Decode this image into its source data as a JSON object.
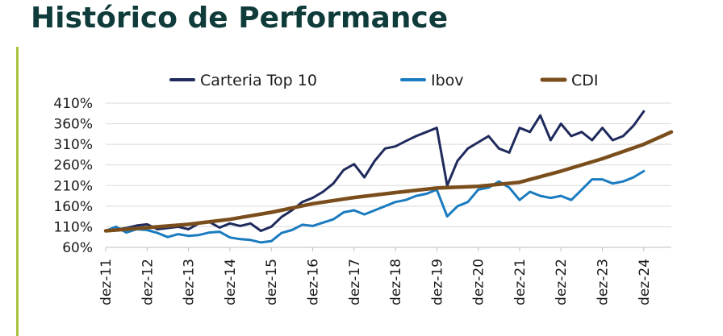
{
  "title": "Histórico de Performance",
  "colors": {
    "title": "#0f3b3b",
    "accent": "#a9c23f",
    "grid": "#d9d9d9"
  },
  "chart_data": {
    "type": "line",
    "title": "",
    "xlabel": "",
    "ylabel": "",
    "ylim": [
      60,
      410
    ],
    "yticks": [
      60,
      110,
      160,
      210,
      260,
      310,
      360,
      410
    ],
    "ytick_labels": [
      "60%",
      "110%",
      "160%",
      "210%",
      "260%",
      "310%",
      "360%",
      "410%"
    ],
    "xticks": [
      "dez-11",
      "dez-12",
      "dez-13",
      "dez-14",
      "dez-15",
      "dez-16",
      "dez-17",
      "dez-18",
      "dez-19",
      "dez-20",
      "dez-21",
      "dez-22",
      "dez-23",
      "dez-24"
    ],
    "grid": "horizontal",
    "legend": "top",
    "series": [
      {
        "name": "Carteria Top 10",
        "color": "#1f2a5c",
        "points": [
          [
            "dez-11",
            100
          ],
          [
            "mar-12",
            103
          ],
          [
            "jun-12",
            107
          ],
          [
            "set-12",
            113
          ],
          [
            "dez-12",
            116
          ],
          [
            "mar-13",
            104
          ],
          [
            "jun-13",
            107
          ],
          [
            "set-13",
            110
          ],
          [
            "dez-13",
            104
          ],
          [
            "mar-14",
            118
          ],
          [
            "jun-14",
            122
          ],
          [
            "set-14",
            108
          ],
          [
            "dez-14",
            118
          ],
          [
            "mar-15",
            112
          ],
          [
            "jun-15",
            118
          ],
          [
            "set-15",
            100
          ],
          [
            "dez-15",
            110
          ],
          [
            "mar-16",
            134
          ],
          [
            "jun-16",
            150
          ],
          [
            "set-16",
            170
          ],
          [
            "dez-16",
            180
          ],
          [
            "mar-17",
            195
          ],
          [
            "jun-17",
            215
          ],
          [
            "set-17",
            248
          ],
          [
            "dez-17",
            262
          ],
          [
            "mar-18",
            230
          ],
          [
            "jun-18",
            270
          ],
          [
            "set-18",
            300
          ],
          [
            "dez-18",
            305
          ],
          [
            "mar-19",
            318
          ],
          [
            "jun-19",
            330
          ],
          [
            "set-19",
            340
          ],
          [
            "dez-19",
            350
          ],
          [
            "mar-20",
            210
          ],
          [
            "jun-20",
            270
          ],
          [
            "set-20",
            300
          ],
          [
            "dez-20",
            315
          ],
          [
            "mar-21",
            330
          ],
          [
            "jun-21",
            300
          ],
          [
            "set-21",
            290
          ],
          [
            "dez-21",
            350
          ],
          [
            "mar-22",
            340
          ],
          [
            "jun-22",
            380
          ],
          [
            "set-22",
            320
          ],
          [
            "dez-22",
            360
          ],
          [
            "mar-23",
            330
          ],
          [
            "jun-23",
            340
          ],
          [
            "set-23",
            320
          ],
          [
            "dez-23",
            350
          ],
          [
            "mar-24",
            320
          ],
          [
            "jun-24",
            330
          ],
          [
            "set-24",
            355
          ],
          [
            "dez-24",
            390
          ]
        ]
      },
      {
        "name": "Ibov",
        "color": "#1a7bbf",
        "points": [
          [
            "dez-11",
            100
          ],
          [
            "mar-12",
            110
          ],
          [
            "jun-12",
            96
          ],
          [
            "set-12",
            104
          ],
          [
            "dez-12",
            102
          ],
          [
            "mar-13",
            95
          ],
          [
            "jun-13",
            85
          ],
          [
            "set-13",
            92
          ],
          [
            "dez-13",
            88
          ],
          [
            "mar-14",
            90
          ],
          [
            "jun-14",
            96
          ],
          [
            "set-14",
            98
          ],
          [
            "dez-14",
            84
          ],
          [
            "mar-15",
            80
          ],
          [
            "jun-15",
            78
          ],
          [
            "set-15",
            72
          ],
          [
            "dez-15",
            75
          ],
          [
            "mar-16",
            95
          ],
          [
            "jun-16",
            102
          ],
          [
            "set-16",
            115
          ],
          [
            "dez-16",
            112
          ],
          [
            "mar-17",
            120
          ],
          [
            "jun-17",
            128
          ],
          [
            "set-17",
            145
          ],
          [
            "dez-17",
            150
          ],
          [
            "mar-18",
            140
          ],
          [
            "jun-18",
            150
          ],
          [
            "set-18",
            160
          ],
          [
            "dez-18",
            170
          ],
          [
            "mar-19",
            175
          ],
          [
            "jun-19",
            185
          ],
          [
            "set-19",
            190
          ],
          [
            "dez-19",
            200
          ],
          [
            "mar-20",
            135
          ],
          [
            "jun-20",
            160
          ],
          [
            "set-20",
            170
          ],
          [
            "dez-20",
            200
          ],
          [
            "mar-21",
            205
          ],
          [
            "jun-21",
            220
          ],
          [
            "set-21",
            205
          ],
          [
            "dez-21",
            175
          ],
          [
            "mar-22",
            195
          ],
          [
            "jun-22",
            185
          ],
          [
            "set-22",
            180
          ],
          [
            "dez-22",
            185
          ],
          [
            "mar-23",
            175
          ],
          [
            "jun-23",
            200
          ],
          [
            "set-23",
            225
          ],
          [
            "dez-23",
            225
          ],
          [
            "mar-24",
            215
          ],
          [
            "jun-24",
            220
          ],
          [
            "set-24",
            230
          ],
          [
            "dez-24",
            245
          ]
        ]
      },
      {
        "name": "CDI",
        "color": "#7a4e1c",
        "points": [
          [
            "dez-11",
            100
          ],
          [
            "dez-12",
            108
          ],
          [
            "dez-13",
            116
          ],
          [
            "dez-14",
            128
          ],
          [
            "dez-15",
            145
          ],
          [
            "dez-16",
            166
          ],
          [
            "dez-17",
            181
          ],
          [
            "dez-18",
            193
          ],
          [
            "dez-19",
            204
          ],
          [
            "dez-20",
            208
          ],
          [
            "dez-21",
            218
          ],
          [
            "dez-22",
            245
          ],
          [
            "dez-23",
            275
          ],
          [
            "dez-24",
            310
          ],
          [
            "ago-25",
            340
          ]
        ]
      }
    ]
  }
}
